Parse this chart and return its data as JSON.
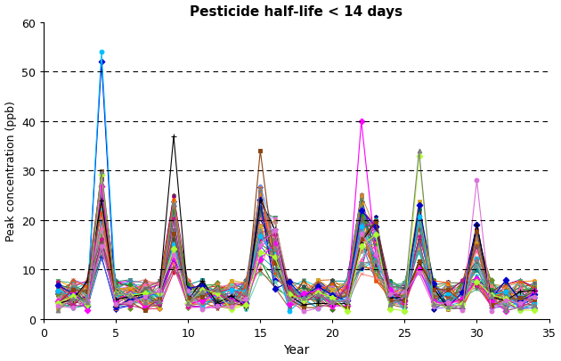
{
  "title": "Pesticide half-life < 14 days",
  "xlabel": "Year",
  "ylabel": "Peak concentration (ppb)",
  "xlim": [
    0,
    35
  ],
  "ylim": [
    0,
    60
  ],
  "xticks": [
    0,
    5,
    10,
    15,
    20,
    25,
    30,
    35
  ],
  "yticks": [
    0,
    10,
    20,
    30,
    40,
    50,
    60
  ],
  "grid_yticks": [
    10,
    20,
    30,
    40,
    50
  ],
  "background": "#ffffff",
  "n_series": 40,
  "x_values": [
    1,
    2,
    3,
    4,
    5,
    6,
    7,
    8,
    9,
    10,
    11,
    12,
    13,
    14,
    15,
    16,
    17,
    18,
    19,
    20,
    21,
    22,
    23,
    24,
    25,
    26,
    27,
    28,
    29,
    30,
    31,
    32,
    33,
    34
  ],
  "colors": [
    "#0000CD",
    "#FF0000",
    "#008000",
    "#800080",
    "#FFA500",
    "#00CED1",
    "#FF00FF",
    "#8B4513",
    "#000080",
    "#556B2F",
    "#DC143C",
    "#008B8B",
    "#FF8C00",
    "#8B008B",
    "#2E8B57",
    "#B8860B",
    "#4169E1",
    "#FF6347",
    "#20B2AA",
    "#DA70D6",
    "#6B8E23",
    "#CD853F",
    "#6495ED",
    "#F08080",
    "#3CB371",
    "#D2691E",
    "#7B68EE",
    "#FA8072",
    "#66CDAA",
    "#BC8F8F",
    "#4682B4",
    "#DAA520",
    "#228B22",
    "#FF69B4",
    "#696969",
    "#A0522D",
    "#5F9EA0",
    "#FF4500",
    "#2F4F4F",
    "#C71585",
    "#191970",
    "#9ACD32",
    "#FF1493",
    "#00FA9A",
    "#8B0000",
    "#BDB76B",
    "#483D8B",
    "#E9967A",
    "#808000"
  ],
  "markers": [
    "D",
    "s",
    "o",
    "^",
    "v",
    "*",
    "+",
    "x",
    "p",
    "h",
    "D",
    "s",
    "o",
    "^",
    "v",
    "*",
    "+",
    "x",
    "p",
    "h",
    "D",
    "s",
    "o",
    "^",
    "v",
    "*",
    "+",
    "x",
    "p",
    "h",
    "D",
    "s",
    "o",
    "^",
    "v",
    "*",
    "+",
    "x",
    "p",
    "h",
    "D",
    "s",
    "o",
    "^",
    "v",
    "*",
    "+",
    "x",
    "p",
    "h"
  ]
}
